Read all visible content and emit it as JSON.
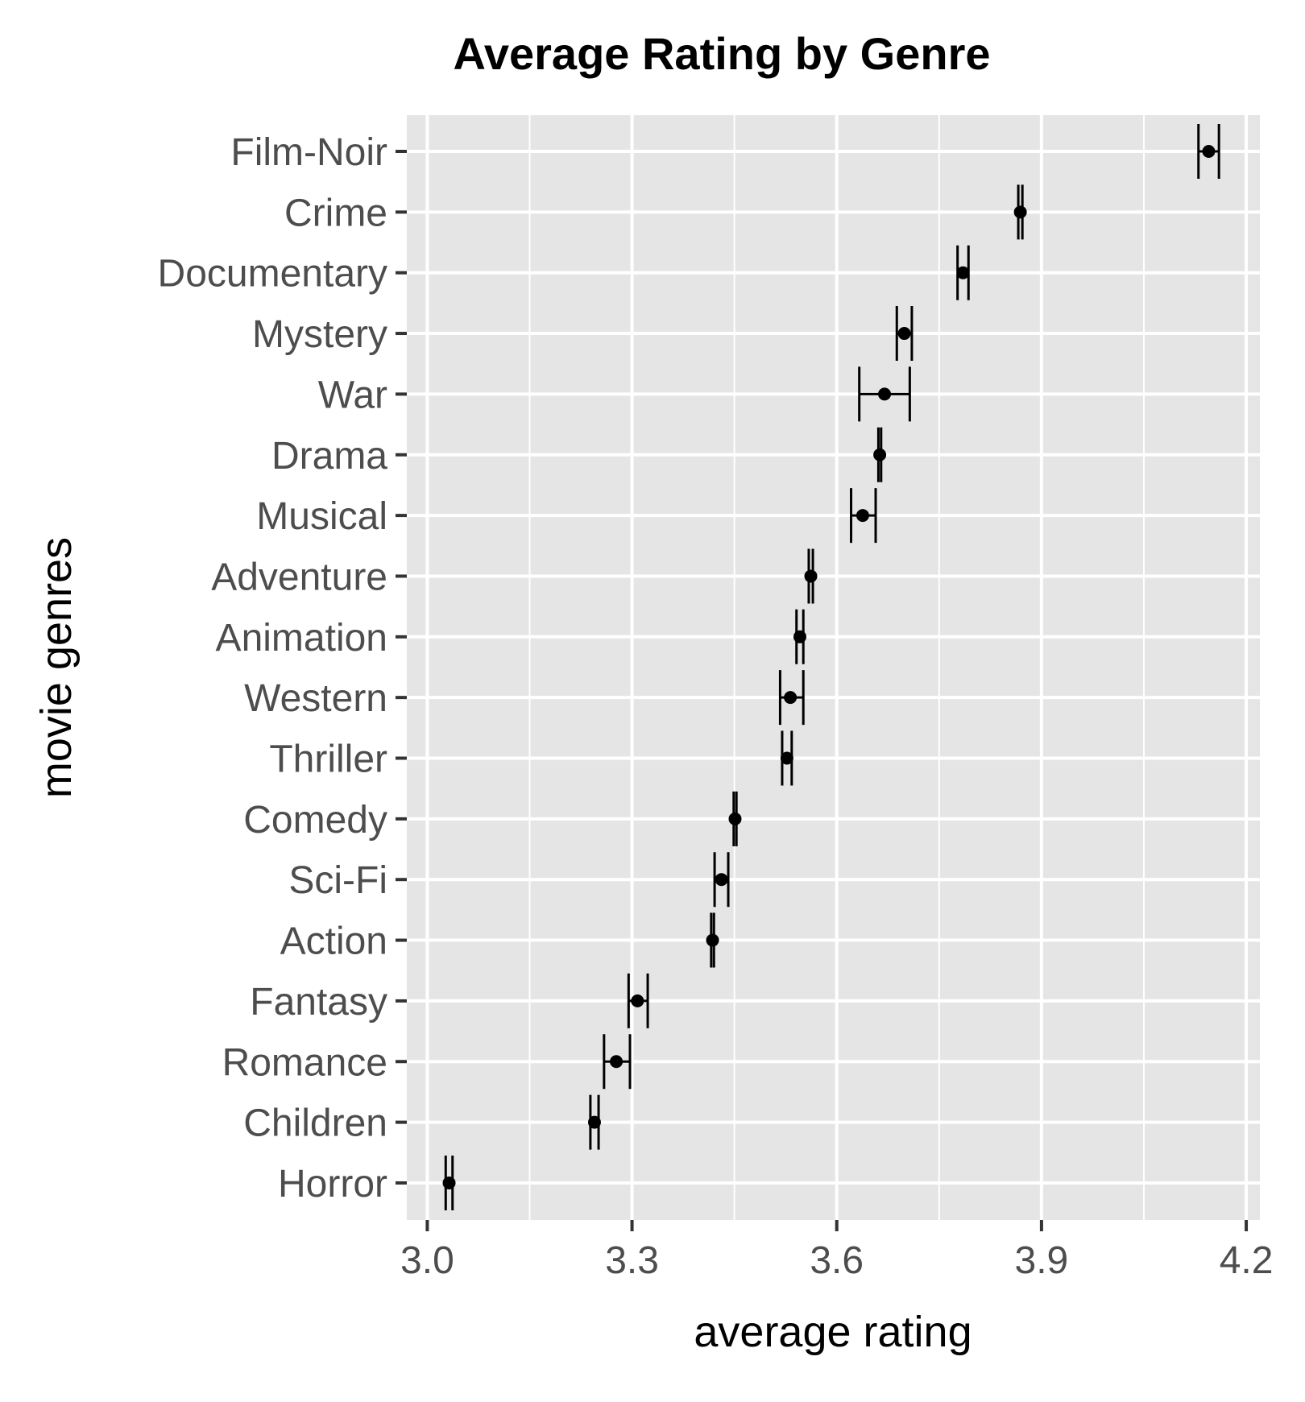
{
  "chart_data": {
    "type": "errorbar-dot",
    "title": "Average Rating by Genre",
    "xlabel": "average rating",
    "ylabel": "movie genres",
    "xlim": [
      2.97,
      4.22
    ],
    "xticks": [
      {
        "value": 3.0,
        "label": "3.0"
      },
      {
        "value": 3.3,
        "label": "3.3"
      },
      {
        "value": 3.6,
        "label": "3.6"
      },
      {
        "value": 3.9,
        "label": "3.9"
      },
      {
        "value": 4.2,
        "label": "4.2"
      }
    ],
    "grid": true,
    "legend": "none",
    "colors": {
      "panel_background": "#e5e5e5",
      "grid": "#ffffff",
      "point": "#000000",
      "tick_label": "#4d4d4d",
      "tick_mark": "#333333"
    },
    "points": [
      {
        "genre": "Film-Noir",
        "mean": 4.145,
        "lower": 4.13,
        "upper": 4.16
      },
      {
        "genre": "Crime",
        "mean": 3.869,
        "lower": 3.866,
        "upper": 3.872
      },
      {
        "genre": "Documentary",
        "mean": 3.785,
        "lower": 3.777,
        "upper": 3.793
      },
      {
        "genre": "Mystery",
        "mean": 3.699,
        "lower": 3.688,
        "upper": 3.71
      },
      {
        "genre": "War",
        "mean": 3.67,
        "lower": 3.633,
        "upper": 3.707
      },
      {
        "genre": "Drama",
        "mean": 3.663,
        "lower": 3.661,
        "upper": 3.665
      },
      {
        "genre": "Musical",
        "mean": 3.638,
        "lower": 3.621,
        "upper": 3.657
      },
      {
        "genre": "Adventure",
        "mean": 3.562,
        "lower": 3.559,
        "upper": 3.565
      },
      {
        "genre": "Animation",
        "mean": 3.546,
        "lower": 3.541,
        "upper": 3.551
      },
      {
        "genre": "Western",
        "mean": 3.532,
        "lower": 3.517,
        "upper": 3.551
      },
      {
        "genre": "Thriller",
        "mean": 3.527,
        "lower": 3.52,
        "upper": 3.534
      },
      {
        "genre": "Comedy",
        "mean": 3.451,
        "lower": 3.449,
        "upper": 3.453
      },
      {
        "genre": "Sci-Fi",
        "mean": 3.431,
        "lower": 3.421,
        "upper": 3.441
      },
      {
        "genre": "Action",
        "mean": 3.418,
        "lower": 3.416,
        "upper": 3.42
      },
      {
        "genre": "Fantasy",
        "mean": 3.308,
        "lower": 3.295,
        "upper": 3.323
      },
      {
        "genre": "Romance",
        "mean": 3.277,
        "lower": 3.259,
        "upper": 3.297
      },
      {
        "genre": "Children",
        "mean": 3.245,
        "lower": 3.239,
        "upper": 3.251
      },
      {
        "genre": "Horror",
        "mean": 3.032,
        "lower": 3.027,
        "upper": 3.037
      }
    ]
  }
}
